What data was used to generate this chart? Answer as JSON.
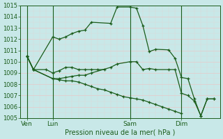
{
  "xlabel": "Pression niveau de la mer( hPa )",
  "background_color": "#c8e8e8",
  "grid_color_major": "#e8c8c8",
  "grid_color_minor": "#e0d8d8",
  "line_color": "#1a5c1a",
  "ylim": [
    1005,
    1015
  ],
  "yticks": [
    1005,
    1006,
    1007,
    1008,
    1009,
    1010,
    1011,
    1012,
    1013,
    1014,
    1015
  ],
  "xtick_labels": [
    "Ven",
    "Lun",
    "Sam",
    "Dim"
  ],
  "xtick_positions": [
    1,
    3,
    9,
    13
  ],
  "vlines_x": [
    1,
    3,
    9,
    13
  ],
  "xlim": [
    0.5,
    16
  ],
  "series": [
    {
      "x": [
        1,
        1.5,
        2.5,
        3,
        3.5,
        4,
        4.5,
        5,
        5.5,
        6,
        6.5,
        7
      ],
      "y": [
        1010.5,
        1009.3,
        1009.3,
        1009.0,
        1009.2,
        1009.5,
        1009.5,
        1009.3,
        1009.3,
        1009.3,
        1009.3,
        1009.3
      ]
    },
    {
      "x": [
        1,
        1.5,
        3,
        3.5,
        4,
        4.5,
        5,
        5.5,
        6,
        7.5,
        8,
        9,
        9.5,
        10,
        10.5,
        11,
        12,
        12.5,
        13,
        13.5,
        14,
        14.5,
        15,
        15.5
      ],
      "y": [
        1010.5,
        1009.3,
        1012.2,
        1012.0,
        1012.2,
        1012.5,
        1012.7,
        1012.8,
        1013.5,
        1013.4,
        1014.85,
        1014.85,
        1014.75,
        1013.2,
        1010.9,
        1011.1,
        1011.05,
        1010.3,
        1008.6,
        1008.5,
        1006.7,
        1005.2,
        1006.7,
        1006.7
      ]
    },
    {
      "x": [
        1,
        1.5,
        3,
        3.5,
        4,
        4.5,
        5,
        5.5,
        6,
        7.5,
        8,
        9,
        9.5,
        10,
        10.5,
        11,
        12,
        12.5,
        13,
        13.5,
        14,
        14.5,
        15,
        15.5
      ],
      "y": [
        1010.5,
        1009.3,
        1008.5,
        1008.5,
        1008.6,
        1008.7,
        1008.8,
        1008.8,
        1009.0,
        1009.5,
        1009.8,
        1010.0,
        1010.0,
        1009.3,
        1009.4,
        1009.3,
        1009.3,
        1009.3,
        1007.2,
        1007.0,
        1006.5,
        1005.2,
        1006.7,
        1006.7
      ]
    },
    {
      "x": [
        1,
        1.5,
        3,
        3.5,
        4,
        4.5,
        5,
        5.5,
        6,
        6.5,
        7,
        7.5,
        8,
        8.5,
        9,
        9.5,
        10,
        10.5,
        11,
        11.5,
        12,
        12.5,
        13
      ],
      "y": [
        1010.5,
        1009.3,
        1008.5,
        1008.4,
        1008.3,
        1008.3,
        1008.2,
        1008.0,
        1007.8,
        1007.6,
        1007.5,
        1007.3,
        1007.1,
        1006.9,
        1006.8,
        1006.7,
        1006.6,
        1006.4,
        1006.2,
        1006.0,
        1005.8,
        1005.6,
        1005.4
      ]
    }
  ]
}
